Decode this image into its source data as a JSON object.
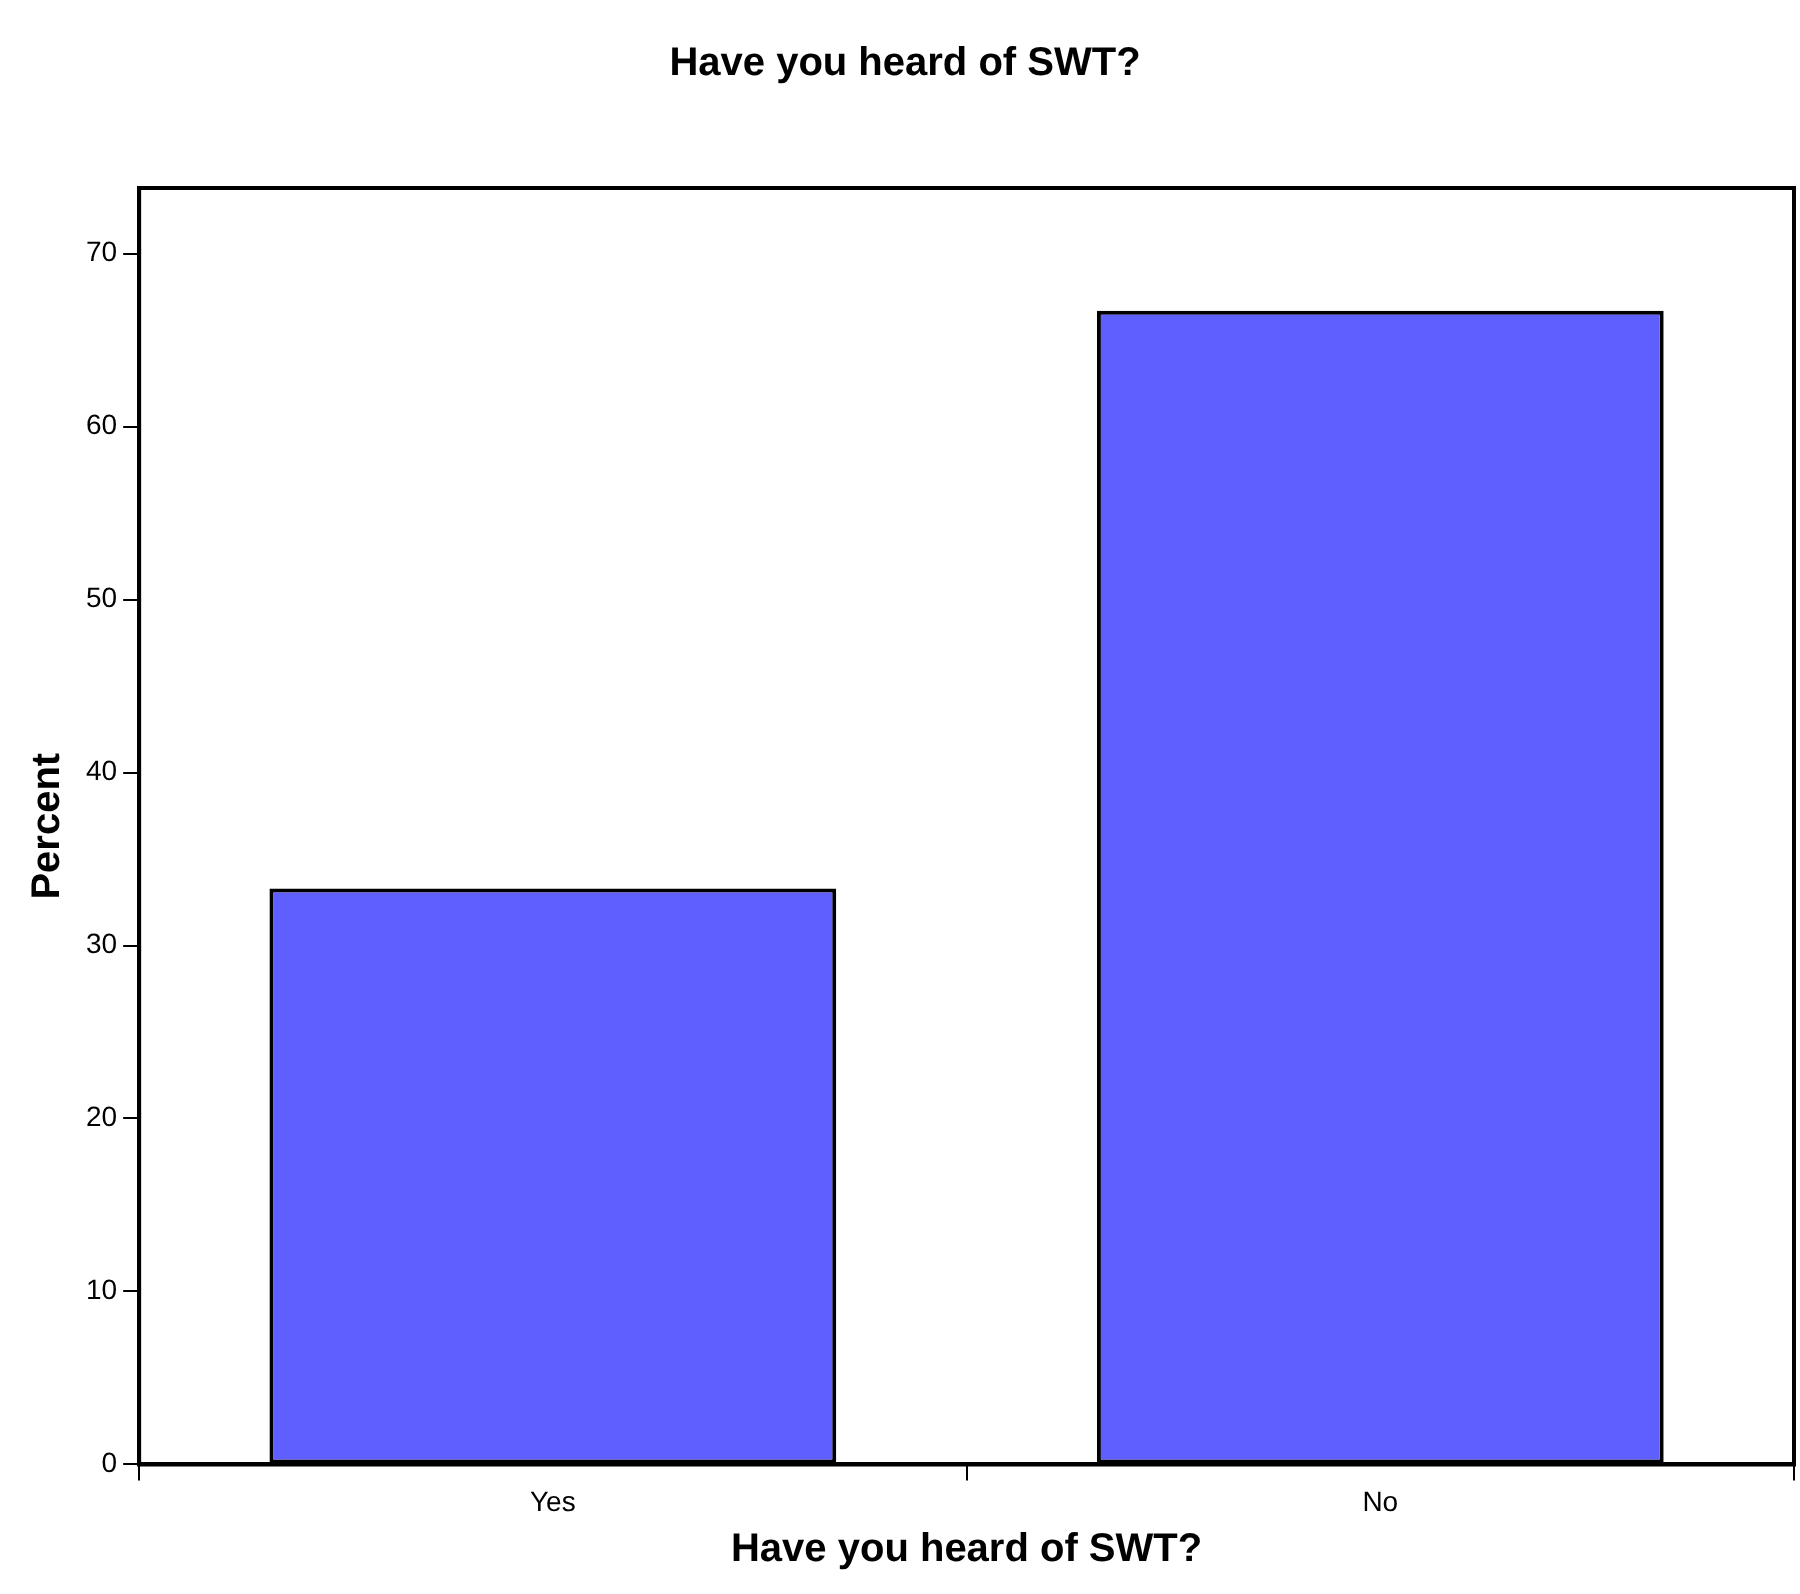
{
  "chart_data": {
    "type": "bar",
    "title": "Have you heard of SWT?",
    "xlabel": "Have you heard of SWT?",
    "ylabel": "Percent",
    "categories": [
      "Yes",
      "No"
    ],
    "values": [
      33.3,
      66.7
    ],
    "color": "#5f5fff",
    "ylim": [
      0,
      73.8
    ],
    "yticks": [
      0,
      10,
      20,
      30,
      40,
      50,
      60,
      70
    ],
    "grid": false,
    "legend": false
  }
}
